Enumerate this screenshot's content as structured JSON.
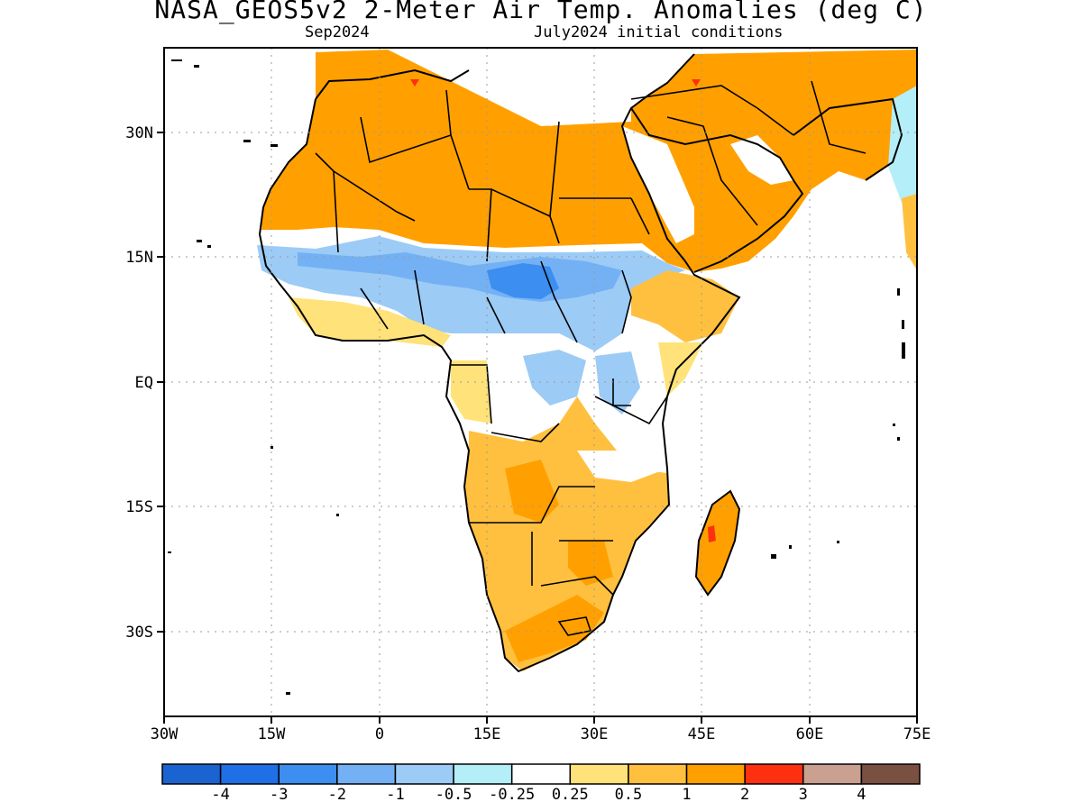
{
  "header": {
    "title": "NASA_GEOS5v2 2-Meter Air Temp. Anomalies (deg C)",
    "subtitle_left": "Sep2024",
    "subtitle_right": "July2024 initial conditions"
  },
  "map": {
    "region": "Africa and Arabian Peninsula",
    "lon_range": [
      -30,
      75
    ],
    "lat_range": [
      -40,
      45
    ],
    "x_ticks": [
      "30W",
      "15W",
      "0",
      "15E",
      "30E",
      "45E",
      "60E",
      "75E"
    ],
    "y_ticks": [
      "30N",
      "15N",
      "EQ",
      "15S",
      "30S"
    ],
    "grid": "dotted"
  },
  "colorbar": {
    "colors": [
      "#1a64d2",
      "#1f6fe6",
      "#3c8ef0",
      "#74b1f4",
      "#9ccbf6",
      "#b4eef8",
      "#ffffff",
      "#ffe27a",
      "#ffc040",
      "#ffa000",
      "#ff3010",
      "#caa090",
      "#7a5040"
    ],
    "labels": [
      "-4",
      "-3",
      "-2",
      "-1",
      "-0.5",
      "-0.25",
      "0.25",
      "0.5",
      "1",
      "2",
      "3",
      "4"
    ]
  }
}
